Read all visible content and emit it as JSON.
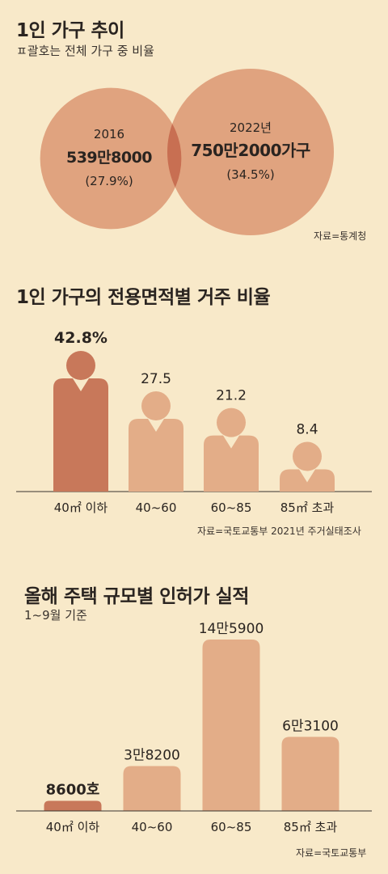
{
  "section1": {
    "title": "1인 가구 추이",
    "subtitle": "ㅍ괄호는 전체 가구 중 비율",
    "source": "자료=통계청"
  },
  "section2": {
    "title": "1인 가구의 전용면적별 거주 비율",
    "source": "자료=국토교통부 2021년 주거실태조사"
  },
  "section3": {
    "title": "올해 주택 규모별 인허가 실적",
    "subtitle": "1~9월 기준",
    "source": "자료=국토교통부"
  },
  "colors": {
    "background": "#f8e9c9",
    "light": "#e3ad88",
    "dark": "#c8785a",
    "circle": "#e0a37f",
    "overlap": "#c86f52"
  },
  "chart_data": [
    {
      "type": "bubble",
      "title": "1인 가구 추이",
      "items": [
        {
          "year": "2016",
          "value_label": "539만8000",
          "share_label": "(27.9%)",
          "value": 5398000,
          "share": 27.9
        },
        {
          "year": "2022년",
          "value_label": "750만2000가구",
          "share_label": "(34.5%)",
          "value": 7502000,
          "share": 34.5
        }
      ]
    },
    {
      "type": "bar",
      "title": "1인 가구의 전용면적별 거주 비율",
      "categories": [
        "40㎡ 이하",
        "40~60",
        "60~85",
        "85㎡ 초과"
      ],
      "values": [
        42.8,
        27.5,
        21.2,
        8.4
      ],
      "value_labels": [
        "42.8%",
        "27.5",
        "21.2",
        "8.4"
      ],
      "highlight_index": 0
    },
    {
      "type": "bar",
      "title": "올해 주택 규모별 인허가 실적",
      "categories": [
        "40㎡ 이하",
        "40~60",
        "60~85",
        "85㎡ 초과"
      ],
      "values": [
        8600,
        38200,
        145900,
        63100
      ],
      "value_labels": [
        "8600호",
        "3만8200",
        "14만5900",
        "6만3100"
      ],
      "highlight_index": 0
    }
  ]
}
